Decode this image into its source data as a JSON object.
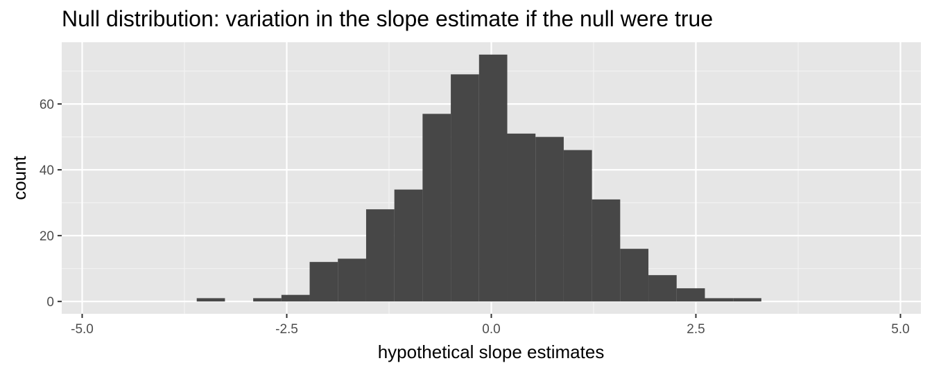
{
  "chart_data": {
    "type": "bar",
    "title": "Null distribution: variation in the slope estimate if the null were true",
    "xlabel": "hypothetical slope estimates",
    "ylabel": "count",
    "xlim": [
      -5.25,
      5.25
    ],
    "ylim": [
      -3.75,
      78.75
    ],
    "x_ticks": [
      -5.0,
      -2.5,
      0.0,
      2.5,
      5.0
    ],
    "x_tick_labels": [
      "-5.0",
      "-2.5",
      "0.0",
      "2.5",
      "5.0"
    ],
    "y_ticks": [
      0,
      20,
      40,
      60
    ],
    "y_tick_labels": [
      "0",
      "20",
      "40",
      "60"
    ],
    "grid": true,
    "bins": [
      {
        "x0": -3.6,
        "x1": -3.255,
        "count": 1
      },
      {
        "x0": -3.255,
        "x1": -2.91,
        "count": 0
      },
      {
        "x0": -2.91,
        "x1": -2.565,
        "count": 1
      },
      {
        "x0": -2.565,
        "x1": -2.22,
        "count": 2
      },
      {
        "x0": -2.22,
        "x1": -1.875,
        "count": 12
      },
      {
        "x0": -1.875,
        "x1": -1.53,
        "count": 13
      },
      {
        "x0": -1.53,
        "x1": -1.185,
        "count": 28
      },
      {
        "x0": -1.185,
        "x1": -0.84,
        "count": 34
      },
      {
        "x0": -0.84,
        "x1": -0.495,
        "count": 57
      },
      {
        "x0": -0.495,
        "x1": -0.15,
        "count": 69
      },
      {
        "x0": -0.15,
        "x1": 0.195,
        "count": 75
      },
      {
        "x0": 0.195,
        "x1": 0.54,
        "count": 51
      },
      {
        "x0": 0.54,
        "x1": 0.885,
        "count": 50
      },
      {
        "x0": 0.885,
        "x1": 1.23,
        "count": 46
      },
      {
        "x0": 1.23,
        "x1": 1.575,
        "count": 31
      },
      {
        "x0": 1.575,
        "x1": 1.92,
        "count": 16
      },
      {
        "x0": 1.92,
        "x1": 2.265,
        "count": 8
      },
      {
        "x0": 2.265,
        "x1": 2.61,
        "count": 4
      },
      {
        "x0": 2.61,
        "x1": 2.955,
        "count": 1
      },
      {
        "x0": 2.955,
        "x1": 3.3,
        "count": 1
      }
    ],
    "colors": {
      "bar_fill": "#474747",
      "panel_background": "#e6e6e6",
      "grid_major": "#ffffff",
      "grid_minor": "#f2f2f2",
      "tick_text": "#4d4d4d",
      "tick_mark": "#333333"
    }
  }
}
